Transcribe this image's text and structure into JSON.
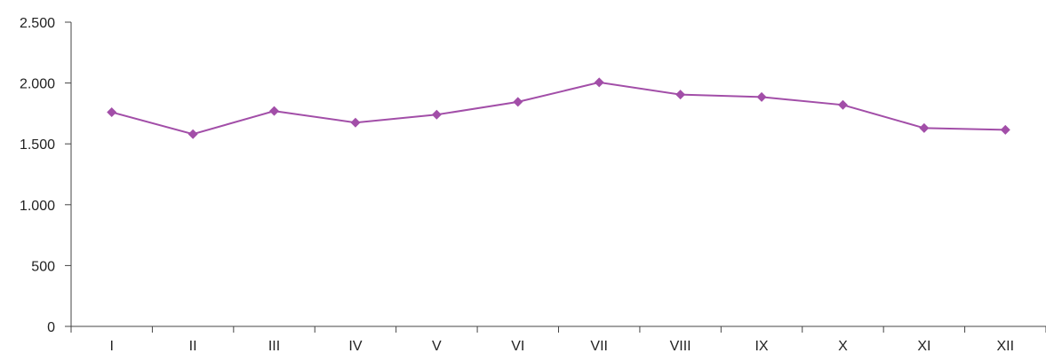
{
  "chart_data": {
    "type": "line",
    "title": "",
    "xlabel": "",
    "ylabel": "",
    "categories": [
      "I",
      "II",
      "III",
      "IV",
      "V",
      "VI",
      "VII",
      "VIII",
      "IX",
      "X",
      "XI",
      "XII"
    ],
    "series": [
      {
        "values": [
          1760,
          1580,
          1770,
          1675,
          1740,
          1845,
          2005,
          1905,
          1885,
          1820,
          1630,
          1615
        ],
        "color": "#a24ea8"
      }
    ],
    "ylim": [
      0,
      2500
    ],
    "yticks": [
      0,
      500,
      1000,
      1500,
      2000,
      2500
    ],
    "ytick_labels": [
      "0",
      "500",
      "1.000",
      "1.500",
      "2.000",
      "2.500"
    ],
    "grid": false,
    "legend": "none",
    "marker": "diamond"
  }
}
